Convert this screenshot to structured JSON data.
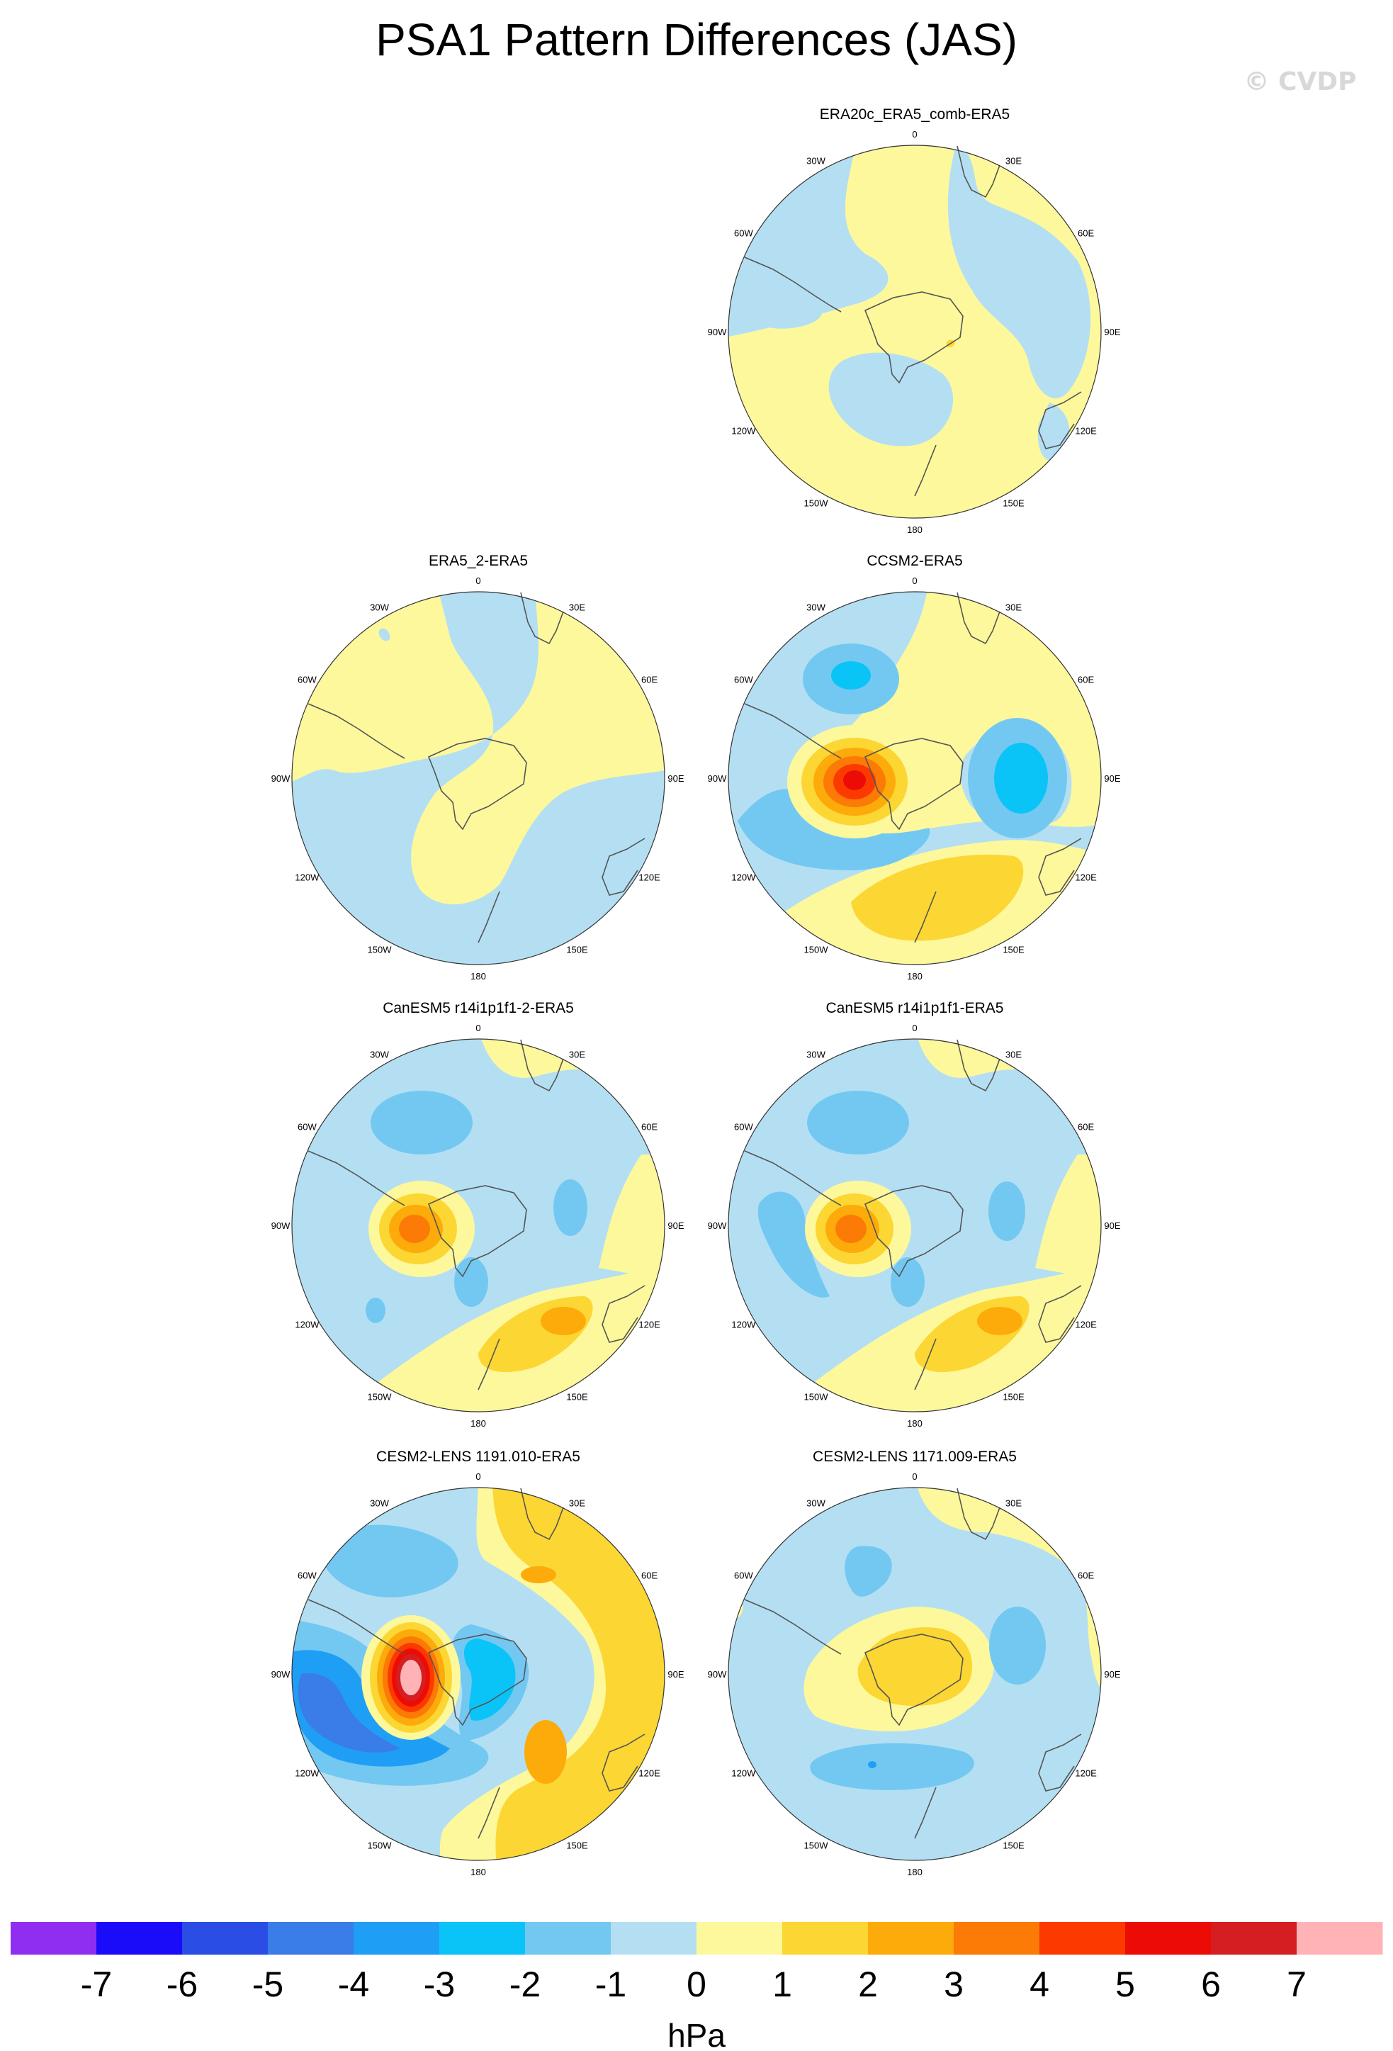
{
  "figure": {
    "title": "PSA1 Pattern Differences (JAS)",
    "watermark": "© CVDP"
  },
  "lon_labels": [
    "0",
    "30E",
    "60E",
    "90E",
    "120E",
    "150E",
    "180",
    "150W",
    "120W",
    "90W",
    "60W",
    "30W"
  ],
  "panels": [
    {
      "id": "p1",
      "title": "ERA20c_ERA5_comb-ERA5"
    },
    {
      "id": "p2",
      "title": "ERA5_2-ERA5"
    },
    {
      "id": "p3",
      "title": "CCSM2-ERA5"
    },
    {
      "id": "p4",
      "title": "CanESM5 r14i1p1f1-2-ERA5"
    },
    {
      "id": "p5",
      "title": "CanESM5 r14i1p1f1-ERA5"
    },
    {
      "id": "p6",
      "title": "CESM2-LENS 1191.010-ERA5"
    },
    {
      "id": "p7",
      "title": "CESM2-LENS 1171.009-ERA5"
    }
  ],
  "colorbar": {
    "units": "hPa",
    "labels": [
      "-7",
      "-6",
      "-5",
      "-4",
      "-3",
      "-2",
      "-1",
      "0",
      "1",
      "2",
      "3",
      "4",
      "5",
      "6",
      "7"
    ],
    "colors": [
      "#8f2ef0",
      "#1a0cf8",
      "#2a4de6",
      "#3a7ce8",
      "#1f9ef5",
      "#0ac4f7",
      "#73c8f2",
      "#b4dff3",
      "#fdf89c",
      "#fcd633",
      "#fcab0a",
      "#fc7a06",
      "#fc3a00",
      "#ec0c05",
      "#d51e22",
      "#ffb3b6"
    ]
  }
}
